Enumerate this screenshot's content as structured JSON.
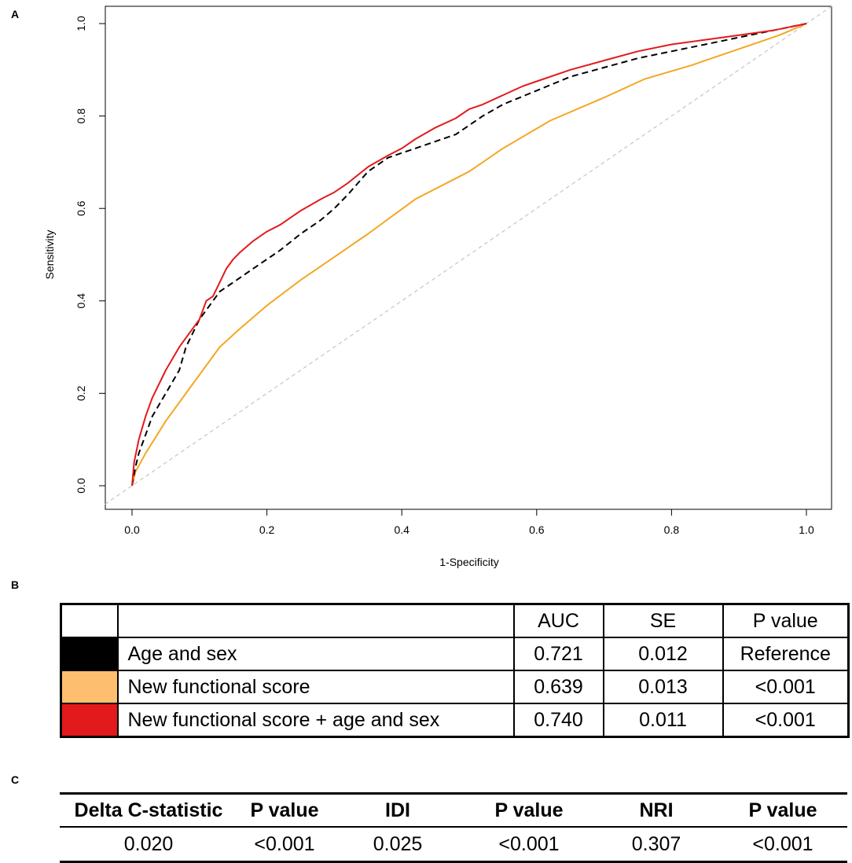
{
  "panels": {
    "a": "A",
    "b": "B",
    "c": "C"
  },
  "chart_data": {
    "type": "line",
    "xlabel": "1-Specificity",
    "ylabel": "Sensitivity",
    "xlim": [
      0,
      1
    ],
    "ylim": [
      0,
      1
    ],
    "xticks": [
      "0.0",
      "0.2",
      "0.4",
      "0.6",
      "0.8",
      "1.0"
    ],
    "yticks": [
      "0.0",
      "0.2",
      "0.4",
      "0.6",
      "0.8",
      "1.0"
    ],
    "series": [
      {
        "name": "Reference diagonal",
        "color": "#bbbbbb",
        "style": "dashed",
        "x": [
          0,
          1
        ],
        "y": [
          0,
          1
        ]
      },
      {
        "name": "New functional score",
        "color": "#F5A623",
        "style": "solid",
        "x": [
          0,
          0.005,
          0.02,
          0.05,
          0.08,
          0.1,
          0.13,
          0.16,
          0.2,
          0.25,
          0.3,
          0.35,
          0.42,
          0.5,
          0.55,
          0.62,
          0.7,
          0.76,
          0.83,
          0.9,
          0.96,
          1.0
        ],
        "y": [
          0,
          0.03,
          0.07,
          0.14,
          0.2,
          0.24,
          0.3,
          0.34,
          0.39,
          0.445,
          0.495,
          0.545,
          0.62,
          0.68,
          0.73,
          0.79,
          0.84,
          0.88,
          0.91,
          0.945,
          0.975,
          1.0
        ]
      },
      {
        "name": "Age and sex",
        "color": "#000000",
        "style": "dashed",
        "x": [
          0,
          0.005,
          0.01,
          0.02,
          0.03,
          0.05,
          0.07,
          0.08,
          0.1,
          0.12,
          0.13,
          0.15,
          0.18,
          0.2,
          0.22,
          0.25,
          0.28,
          0.3,
          0.32,
          0.35,
          0.38,
          0.42,
          0.45,
          0.48,
          0.52,
          0.55,
          0.6,
          0.65,
          0.7,
          0.75,
          0.8,
          0.85,
          0.9,
          0.95,
          1.0
        ],
        "y": [
          0,
          0.04,
          0.07,
          0.11,
          0.15,
          0.2,
          0.25,
          0.3,
          0.36,
          0.4,
          0.42,
          0.44,
          0.47,
          0.49,
          0.51,
          0.545,
          0.575,
          0.6,
          0.63,
          0.68,
          0.71,
          0.73,
          0.745,
          0.76,
          0.8,
          0.825,
          0.855,
          0.885,
          0.905,
          0.925,
          0.94,
          0.955,
          0.97,
          0.985,
          1.0
        ]
      },
      {
        "name": "New functional score + age and sex",
        "color": "#E31A1C",
        "style": "solid",
        "x": [
          0,
          0.003,
          0.01,
          0.02,
          0.03,
          0.05,
          0.07,
          0.08,
          0.1,
          0.11,
          0.12,
          0.13,
          0.14,
          0.15,
          0.16,
          0.18,
          0.2,
          0.22,
          0.25,
          0.28,
          0.3,
          0.32,
          0.35,
          0.38,
          0.4,
          0.42,
          0.45,
          0.48,
          0.5,
          0.52,
          0.55,
          0.58,
          0.6,
          0.65,
          0.7,
          0.75,
          0.8,
          0.85,
          0.9,
          0.95,
          1.0
        ],
        "y": [
          0,
          0.05,
          0.1,
          0.15,
          0.19,
          0.25,
          0.3,
          0.32,
          0.36,
          0.4,
          0.41,
          0.44,
          0.47,
          0.49,
          0.505,
          0.53,
          0.55,
          0.565,
          0.595,
          0.62,
          0.635,
          0.655,
          0.69,
          0.715,
          0.73,
          0.75,
          0.775,
          0.795,
          0.815,
          0.825,
          0.845,
          0.865,
          0.875,
          0.9,
          0.92,
          0.94,
          0.955,
          0.965,
          0.975,
          0.985,
          1.0
        ]
      }
    ]
  },
  "table_b": {
    "headers": [
      "",
      "",
      "AUC",
      "SE",
      "P value"
    ],
    "rows": [
      {
        "color": "#000000",
        "label": "Age and sex",
        "auc": "0.721",
        "se": "0.012",
        "p": "Reference"
      },
      {
        "color": "#FDBF6F",
        "label": "New functional score",
        "auc": "0.639",
        "se": "0.013",
        "p": "<0.001"
      },
      {
        "color": "#E31A1C",
        "label": "New functional score + age and sex",
        "auc": "0.740",
        "se": "0.011",
        "p": "<0.001"
      }
    ]
  },
  "table_c": {
    "headers": [
      "Delta C-statistic",
      "P value",
      "IDI",
      "P value",
      "NRI",
      "P value"
    ],
    "values": [
      "0.020",
      "<0.001",
      "0.025",
      "<0.001",
      "0.307",
      "<0.001"
    ]
  }
}
